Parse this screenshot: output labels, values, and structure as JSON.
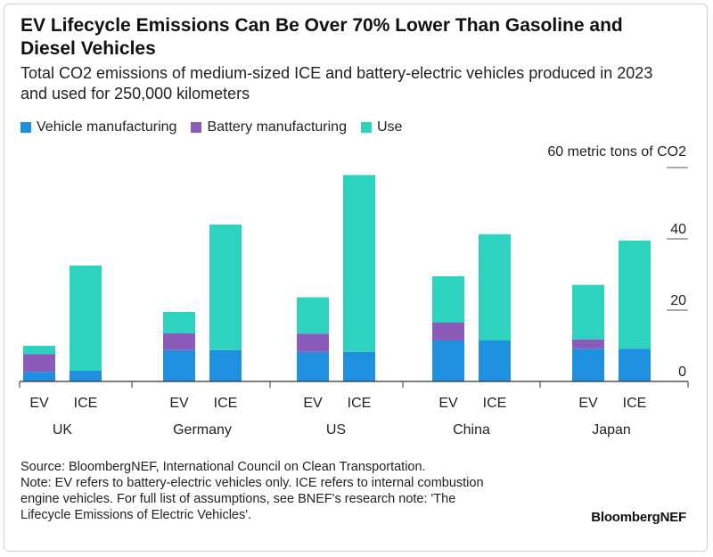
{
  "title": "EV Lifecycle Emissions Can Be Over 70% Lower Than Gasoline and Diesel Vehicles",
  "subtitle": "Total CO2 emissions of medium-sized ICE and battery-electric vehicles produced in 2023 and used for 250,000 kilometers",
  "legend": [
    {
      "label": "Vehicle manufacturing",
      "color": "#1f8fe0"
    },
    {
      "label": "Battery manufacturing",
      "color": "#8a5bb8"
    },
    {
      "label": "Use",
      "color": "#2ed3bf"
    }
  ],
  "unit_label": "60 metric tons of CO2",
  "notes": {
    "source": "Source: BloombergNEF, International Council on Clean Transportation.",
    "note_line1": "Note: EV refers to battery-electric vehicles only. ICE refers to internal combustion",
    "note_line2": "engine vehicles. For full list of assumptions, see BNEF's research note: 'The",
    "note_line3": "Lifecycle Emissions of Electric Vehicles'."
  },
  "brand": "BloombergNEF",
  "chart_data": {
    "type": "bar",
    "stacked": true,
    "ylim": [
      0,
      60
    ],
    "yticks": [
      0,
      20,
      40
    ],
    "ytick_labels": [
      "0",
      "20",
      "40"
    ],
    "groups": [
      {
        "name": "UK",
        "bars": [
          {
            "label": "EV",
            "vehicle": 2.7,
            "battery": 5.0,
            "use": 2.3
          },
          {
            "label": "ICE",
            "vehicle": 3.0,
            "battery": 0,
            "use": 29.5
          }
        ]
      },
      {
        "name": "Germany",
        "bars": [
          {
            "label": "EV",
            "vehicle": 8.8,
            "battery": 4.7,
            "use": 6.0
          },
          {
            "label": "ICE",
            "vehicle": 8.8,
            "battery": 0,
            "use": 35.2
          }
        ]
      },
      {
        "name": "US",
        "bars": [
          {
            "label": "EV",
            "vehicle": 8.3,
            "battery": 5.1,
            "use": 10.2
          },
          {
            "label": "ICE",
            "vehicle": 8.3,
            "battery": 0,
            "use": 49.6
          }
        ]
      },
      {
        "name": "China",
        "bars": [
          {
            "label": "EV",
            "vehicle": 11.5,
            "battery": 5.0,
            "use": 13.0
          },
          {
            "label": "ICE",
            "vehicle": 11.5,
            "battery": 0,
            "use": 29.8
          }
        ]
      },
      {
        "name": "Japan",
        "bars": [
          {
            "label": "EV",
            "vehicle": 9.2,
            "battery": 2.6,
            "use": 15.3
          },
          {
            "label": "ICE",
            "vehicle": 9.2,
            "battery": 0,
            "use": 30.3
          }
        ]
      }
    ]
  }
}
